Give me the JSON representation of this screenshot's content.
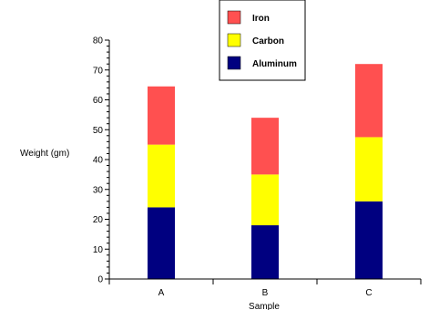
{
  "chart_data": {
    "type": "bar",
    "stacked": true,
    "categories": [
      "A",
      "B",
      "C"
    ],
    "series": [
      {
        "name": "Aluminum",
        "color": "#000080",
        "values": [
          24,
          18,
          26
        ]
      },
      {
        "name": "Carbon",
        "color": "#ffff00",
        "values": [
          21,
          17,
          21.5
        ]
      },
      {
        "name": "Iron",
        "color": "#ff5050",
        "values": [
          19.5,
          19,
          24.5
        ]
      }
    ],
    "legend_order": [
      "Iron",
      "Carbon",
      "Aluminum"
    ],
    "title": "",
    "xlabel": "Sample",
    "ylabel": "Weight (gm)",
    "ylim": [
      0,
      80
    ],
    "yticks": [
      0,
      10,
      20,
      30,
      40,
      50,
      60,
      70,
      80
    ],
    "grid": false,
    "legend_position": "top"
  }
}
